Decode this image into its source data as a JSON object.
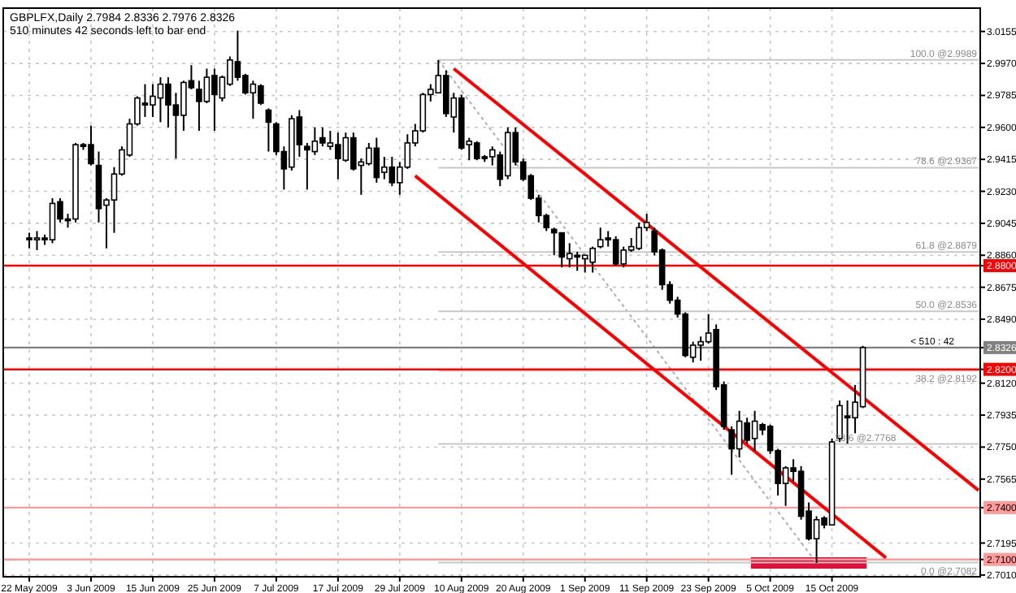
{
  "chart_data": {
    "type": "candlestick",
    "title": "GBPLFX,Daily  2.7984 2.8336 2.7976 2.8326",
    "subtitle": "510 minutes 42 seconds left to bar end",
    "categories": [
      "22 May 2009",
      null,
      null,
      null,
      null,
      null,
      null,
      null,
      "3 Jun 2009",
      null,
      null,
      null,
      null,
      null,
      null,
      null,
      "15 Jun 2009",
      null,
      null,
      null,
      null,
      null,
      null,
      null,
      "25 Jun 2009",
      null,
      null,
      null,
      null,
      null,
      null,
      null,
      "7 Jul 2009",
      null,
      null,
      null,
      null,
      null,
      null,
      null,
      "17 Jul 2009",
      null,
      null,
      null,
      null,
      null,
      null,
      null,
      "29 Jul 2009",
      null,
      null,
      null,
      null,
      null,
      null,
      null,
      "10 Aug 2009",
      null,
      null,
      null,
      null,
      null,
      null,
      null,
      "20 Aug 2009",
      null,
      null,
      null,
      null,
      null,
      null,
      null,
      "1 Sep 2009",
      null,
      null,
      null,
      null,
      null,
      null,
      null,
      "11 Sep 2009",
      null,
      null,
      null,
      null,
      null,
      null,
      null,
      "23 Sep 2009",
      null,
      null,
      null,
      null,
      null,
      null,
      null,
      "5 Oct 2009",
      null,
      null,
      null,
      null,
      null,
      null,
      null,
      "15 Oct 2009",
      null,
      null,
      null,
      null,
      null,
      null,
      null,
      null,
      null,
      null,
      null,
      null,
      null,
      null,
      null,
      null,
      null,
      null,
      null
    ],
    "ohlc": [
      [
        2.896,
        2.899,
        2.89,
        2.895
      ],
      [
        2.895,
        2.9,
        2.889,
        2.896
      ],
      [
        2.896,
        2.898,
        2.892,
        2.895
      ],
      [
        2.895,
        2.919,
        2.893,
        2.916
      ],
      [
        2.917,
        2.919,
        2.905,
        2.907
      ],
      [
        2.907,
        2.91,
        2.902,
        2.906
      ],
      [
        2.907,
        2.951,
        2.905,
        2.95
      ],
      [
        2.95,
        2.951,
        2.947,
        2.949
      ],
      [
        2.95,
        2.961,
        2.938,
        2.939
      ],
      [
        2.938,
        2.946,
        2.905,
        2.913
      ],
      [
        2.915,
        2.919,
        2.89,
        2.918
      ],
      [
        2.918,
        2.937,
        2.899,
        2.933
      ],
      [
        2.933,
        2.949,
        2.932,
        2.947
      ],
      [
        2.944,
        2.965,
        2.943,
        2.962
      ],
      [
        2.962,
        2.978,
        2.961,
        2.977
      ],
      [
        2.974,
        2.985,
        2.966,
        2.973
      ],
      [
        2.973,
        2.985,
        2.966,
        2.978
      ],
      [
        2.977,
        2.989,
        2.963,
        2.985
      ],
      [
        2.985,
        2.989,
        2.96,
        2.973
      ],
      [
        2.973,
        2.98,
        2.942,
        2.967
      ],
      [
        2.967,
        2.987,
        2.958,
        2.986
      ],
      [
        2.987,
        2.996,
        2.982,
        2.983
      ],
      [
        2.982,
        2.987,
        2.958,
        2.975
      ],
      [
        2.975,
        2.994,
        2.974,
        2.989
      ],
      [
        2.99,
        2.994,
        2.958,
        2.979
      ],
      [
        2.977,
        2.99,
        2.975,
        2.989
      ],
      [
        2.985,
        3.001,
        2.984,
        2.999
      ],
      [
        2.998,
        3.016,
        2.987,
        2.989
      ],
      [
        2.99,
        2.991,
        2.979,
        2.98
      ],
      [
        2.98,
        2.987,
        2.965,
        2.985
      ],
      [
        2.984,
        2.985,
        2.973,
        2.974
      ],
      [
        2.97,
        2.971,
        2.946,
        2.963
      ],
      [
        2.962,
        2.963,
        2.944,
        2.946
      ],
      [
        2.946,
        2.949,
        2.924,
        2.936
      ],
      [
        2.937,
        2.967,
        2.935,
        2.965
      ],
      [
        2.966,
        2.97,
        2.943,
        2.95
      ],
      [
        2.949,
        2.951,
        2.924,
        2.947
      ],
      [
        2.946,
        2.96,
        2.944,
        2.952
      ],
      [
        2.954,
        2.96,
        2.949,
        2.951
      ],
      [
        2.949,
        2.958,
        2.947,
        2.951
      ],
      [
        2.95,
        2.957,
        2.93,
        2.942
      ],
      [
        2.941,
        2.957,
        2.94,
        2.954
      ],
      [
        2.954,
        2.957,
        2.935,
        2.936
      ],
      [
        2.938,
        2.942,
        2.921,
        2.94
      ],
      [
        2.939,
        2.951,
        2.938,
        2.948
      ],
      [
        2.948,
        2.954,
        2.928,
        2.931
      ],
      [
        2.934,
        2.943,
        2.93,
        2.937
      ],
      [
        2.937,
        2.943,
        2.926,
        2.928
      ],
      [
        2.928,
        2.94,
        2.921,
        2.937
      ],
      [
        2.937,
        2.956,
        2.936,
        2.951
      ],
      [
        2.951,
        2.962,
        2.949,
        2.958
      ],
      [
        2.958,
        2.98,
        2.957,
        2.979
      ],
      [
        2.979,
        2.985,
        2.975,
        2.982
      ],
      [
        2.98,
        2.999,
        2.98,
        2.99
      ],
      [
        2.99,
        2.993,
        2.966,
        2.968
      ],
      [
        2.966,
        2.98,
        2.957,
        2.977
      ],
      [
        2.977,
        2.979,
        2.947,
        2.948
      ],
      [
        2.95,
        2.954,
        2.941,
        2.952
      ],
      [
        2.951,
        2.952,
        2.941,
        2.942
      ],
      [
        2.943,
        2.944,
        2.94,
        2.942
      ],
      [
        2.943,
        2.949,
        2.938,
        2.947
      ],
      [
        2.944,
        2.946,
        2.926,
        2.93
      ],
      [
        2.932,
        2.96,
        2.93,
        2.957
      ],
      [
        2.957,
        2.96,
        2.938,
        2.94
      ],
      [
        2.94,
        2.942,
        2.929,
        2.93
      ],
      [
        2.932,
        2.933,
        2.918,
        2.919
      ],
      [
        2.919,
        2.921,
        2.905,
        2.909
      ],
      [
        2.909,
        2.91,
        2.9,
        2.902
      ],
      [
        2.901,
        2.902,
        2.886,
        2.899
      ],
      [
        2.899,
        2.899,
        2.879,
        2.885
      ],
      [
        2.884,
        2.893,
        2.879,
        2.887
      ],
      [
        2.886,
        2.888,
        2.877,
        2.885
      ],
      [
        2.884,
        2.886,
        2.876,
        2.886
      ],
      [
        2.882,
        2.891,
        2.876,
        2.89
      ],
      [
        2.891,
        2.902,
        2.89,
        2.895
      ],
      [
        2.896,
        2.9,
        2.891,
        2.895
      ],
      [
        2.895,
        2.897,
        2.88,
        2.881
      ],
      [
        2.881,
        2.891,
        2.879,
        2.889
      ],
      [
        2.889,
        2.896,
        2.888,
        2.891
      ],
      [
        2.89,
        2.905,
        2.889,
        2.902
      ],
      [
        2.902,
        2.91,
        2.9,
        2.905
      ],
      [
        2.9,
        2.902,
        2.886,
        2.888
      ],
      [
        2.889,
        2.89,
        2.866,
        2.869
      ],
      [
        2.869,
        2.871,
        2.858,
        2.86
      ],
      [
        2.86,
        2.862,
        2.85,
        2.852
      ],
      [
        2.852,
        2.853,
        2.827,
        2.828
      ],
      [
        2.827,
        2.836,
        2.824,
        2.834
      ],
      [
        2.834,
        2.839,
        2.825,
        2.836
      ],
      [
        2.836,
        2.852,
        2.835,
        2.841
      ],
      [
        2.843,
        2.846,
        2.808,
        2.81
      ],
      [
        2.811,
        2.813,
        2.785,
        2.787
      ],
      [
        2.785,
        2.787,
        2.759,
        2.774
      ],
      [
        2.774,
        2.796,
        2.769,
        2.79
      ],
      [
        2.789,
        2.792,
        2.777,
        2.779
      ],
      [
        2.78,
        2.796,
        2.773,
        2.79
      ],
      [
        2.788,
        2.789,
        2.782,
        2.785
      ],
      [
        2.787,
        2.788,
        2.771,
        2.773
      ],
      [
        2.773,
        2.774,
        2.747,
        2.754
      ],
      [
        2.754,
        2.764,
        2.741,
        2.763
      ],
      [
        2.763,
        2.768,
        2.755,
        2.761
      ],
      [
        2.761,
        2.764,
        2.733,
        2.735
      ],
      [
        2.738,
        2.743,
        2.721,
        2.722
      ],
      [
        2.722,
        2.735,
        2.708,
        2.733
      ],
      [
        2.734,
        2.735,
        2.728,
        2.73
      ],
      [
        2.73,
        2.78,
        2.73,
        2.778
      ],
      [
        2.78,
        2.802,
        2.778,
        2.799
      ],
      [
        2.793,
        2.802,
        2.777,
        2.792
      ],
      [
        2.792,
        2.811,
        2.783,
        2.801
      ],
      [
        2.7984,
        2.8336,
        2.7976,
        2.8326
      ],
      null,
      null,
      null,
      null,
      null,
      null,
      null,
      null,
      null,
      null,
      null,
      null,
      null,
      null,
      null
    ],
    "series": [
      {
        "type": "line",
        "color": "#ff0000",
        "line_style": "solid",
        "values": [
          null,
          null,
          null,
          null,
          null,
          null,
          null,
          null,
          null,
          null,
          null,
          null,
          null,
          null,
          null,
          null,
          null,
          null,
          null,
          null,
          null,
          null,
          null,
          null,
          null,
          null,
          null,
          null,
          null,
          null,
          null,
          null,
          null,
          null,
          null,
          null,
          null,
          null,
          null,
          null,
          null,
          null,
          null,
          null,
          null,
          null,
          null,
          null,
          null,
          null,
          null,
          null,
          null,
          null,
          null,
          2.994,
          null,
          null,
          null,
          null,
          null,
          null,
          null,
          null,
          null,
          null,
          null,
          null,
          null,
          null,
          null,
          null,
          null,
          null,
          null,
          null,
          null,
          null,
          null,
          null,
          null,
          null,
          null,
          null,
          null,
          null,
          null,
          null,
          null,
          null,
          null,
          null,
          null,
          null,
          null,
          null,
          null,
          null,
          null,
          null,
          null,
          null,
          null,
          null,
          null,
          null,
          null,
          null,
          null,
          null,
          null,
          null,
          null,
          null,
          null,
          null,
          null,
          null,
          null,
          null,
          null,
          null,
          null,
          2.75
        ]
      },
      {
        "type": "line",
        "color": "#ff0000",
        "line_style": "solid",
        "values": [
          null,
          null,
          null,
          null,
          null,
          null,
          null,
          null,
          null,
          null,
          null,
          null,
          null,
          null,
          null,
          null,
          null,
          null,
          null,
          null,
          null,
          null,
          null,
          null,
          null,
          null,
          null,
          null,
          null,
          null,
          null,
          null,
          null,
          null,
          null,
          null,
          null,
          null,
          null,
          null,
          null,
          null,
          null,
          null,
          null,
          null,
          null,
          null,
          null,
          null,
          2.932,
          null,
          null,
          null,
          null,
          null,
          null,
          null,
          null,
          null,
          null,
          null,
          null,
          null,
          null,
          null,
          null,
          null,
          null,
          null,
          null,
          null,
          null,
          null,
          null,
          null,
          null,
          null,
          null,
          null,
          null,
          null,
          null,
          null,
          null,
          null,
          null,
          null,
          null,
          null,
          null,
          null,
          null,
          null,
          null,
          null,
          null,
          null,
          null,
          null,
          null,
          null,
          null,
          null,
          null,
          null,
          null,
          null,
          null,
          null,
          null,
          2.711,
          null,
          null,
          null,
          null,
          null,
          null,
          null,
          null,
          null,
          null,
          null,
          null
        ]
      },
      {
        "type": "line",
        "color": "#b0b0b0",
        "line_style": "dotted",
        "values": [
          null,
          null,
          null,
          null,
          null,
          null,
          null,
          null,
          null,
          null,
          null,
          null,
          null,
          null,
          null,
          null,
          null,
          null,
          null,
          null,
          null,
          null,
          null,
          null,
          null,
          null,
          null,
          null,
          null,
          null,
          null,
          null,
          null,
          null,
          null,
          null,
          null,
          null,
          null,
          null,
          null,
          null,
          null,
          null,
          null,
          null,
          null,
          null,
          null,
          null,
          null,
          null,
          null,
          2.999,
          null,
          null,
          null,
          null,
          null,
          null,
          null,
          null,
          null,
          null,
          null,
          null,
          null,
          null,
          null,
          null,
          null,
          null,
          null,
          null,
          null,
          null,
          null,
          null,
          null,
          null,
          null,
          null,
          null,
          null,
          null,
          null,
          null,
          null,
          null,
          null,
          null,
          null,
          null,
          null,
          null,
          null,
          null,
          null,
          null,
          null,
          null,
          null,
          2.708,
          null,
          null,
          null,
          null,
          null,
          null,
          null,
          null,
          null,
          null,
          null,
          null,
          null,
          null,
          null,
          null,
          null,
          null,
          null,
          null,
          null
        ]
      },
      {
        "type": "line",
        "color": "#c8c8c8",
        "line_style": "solid",
        "values": [
          null,
          null,
          null,
          null,
          null,
          null,
          null,
          null,
          null,
          null,
          null,
          null,
          null,
          null,
          null,
          null,
          null,
          null,
          null,
          null,
          null,
          null,
          null,
          null,
          null,
          null,
          null,
          null,
          null,
          null,
          null,
          null,
          null,
          null,
          null,
          null,
          null,
          null,
          null,
          null,
          null,
          null,
          null,
          null,
          null,
          null,
          null,
          null,
          null,
          null,
          null,
          null,
          null,
          2.999,
          null,
          null,
          null,
          null,
          null,
          null,
          null,
          null,
          null,
          null,
          null,
          null,
          null,
          null,
          null,
          null,
          null,
          null,
          null,
          null,
          null,
          null,
          null,
          null,
          null,
          null,
          null,
          null,
          null,
          null,
          null,
          null,
          null,
          null,
          null,
          null,
          null,
          null,
          null,
          null,
          null,
          null,
          null,
          null,
          null,
          null,
          null,
          null,
          null,
          null,
          null,
          null,
          null,
          null,
          null,
          null,
          null,
          null,
          null,
          null,
          null,
          null,
          null,
          null,
          null,
          null,
          null,
          null,
          null,
          2.999
        ]
      },
      {
        "type": "line",
        "color": "#c8c8c8",
        "line_style": "solid",
        "values": [
          null,
          null,
          null,
          null,
          null,
          null,
          null,
          null,
          null,
          null,
          null,
          null,
          null,
          null,
          null,
          null,
          null,
          null,
          null,
          null,
          null,
          null,
          null,
          null,
          null,
          null,
          null,
          null,
          null,
          null,
          null,
          null,
          null,
          null,
          null,
          null,
          null,
          null,
          null,
          null,
          null,
          null,
          null,
          null,
          null,
          null,
          null,
          null,
          null,
          null,
          null,
          null,
          null,
          2.9367,
          null,
          null,
          null,
          null,
          null,
          null,
          null,
          null,
          null,
          null,
          null,
          null,
          null,
          null,
          null,
          null,
          null,
          null,
          null,
          null,
          null,
          null,
          null,
          null,
          null,
          null,
          null,
          null,
          null,
          null,
          null,
          null,
          null,
          null,
          null,
          null,
          null,
          null,
          null,
          null,
          null,
          null,
          null,
          null,
          null,
          null,
          null,
          null,
          null,
          null,
          null,
          null,
          null,
          null,
          null,
          null,
          null,
          null,
          null,
          null,
          null,
          null,
          null,
          null,
          null,
          null,
          null,
          null,
          null,
          2.9367
        ]
      },
      {
        "type": "line",
        "color": "#c8c8c8",
        "line_style": "solid",
        "values": [
          null,
          null,
          null,
          null,
          null,
          null,
          null,
          null,
          null,
          null,
          null,
          null,
          null,
          null,
          null,
          null,
          null,
          null,
          null,
          null,
          null,
          null,
          null,
          null,
          null,
          null,
          null,
          null,
          null,
          null,
          null,
          null,
          null,
          null,
          null,
          null,
          null,
          null,
          null,
          null,
          null,
          null,
          null,
          null,
          null,
          null,
          null,
          null,
          null,
          null,
          null,
          null,
          null,
          2.8879,
          null,
          null,
          null,
          null,
          null,
          null,
          null,
          null,
          null,
          null,
          null,
          null,
          null,
          null,
          null,
          null,
          null,
          null,
          null,
          null,
          null,
          null,
          null,
          null,
          null,
          null,
          null,
          null,
          null,
          null,
          null,
          null,
          null,
          null,
          null,
          null,
          null,
          null,
          null,
          null,
          null,
          null,
          null,
          null,
          null,
          null,
          null,
          null,
          null,
          null,
          null,
          null,
          null,
          null,
          null,
          null,
          null,
          null,
          null,
          null,
          null,
          null,
          null,
          null,
          null,
          null,
          null,
          null,
          null,
          2.8879
        ]
      },
      {
        "type": "line",
        "color": "#c8c8c8",
        "line_style": "solid",
        "values": [
          null,
          null,
          null,
          null,
          null,
          null,
          null,
          null,
          null,
          null,
          null,
          null,
          null,
          null,
          null,
          null,
          null,
          null,
          null,
          null,
          null,
          null,
          null,
          null,
          null,
          null,
          null,
          null,
          null,
          null,
          null,
          null,
          null,
          null,
          null,
          null,
          null,
          null,
          null,
          null,
          null,
          null,
          null,
          null,
          null,
          null,
          null,
          null,
          null,
          null,
          null,
          null,
          null,
          2.8536,
          null,
          null,
          null,
          null,
          null,
          null,
          null,
          null,
          null,
          null,
          null,
          null,
          null,
          null,
          null,
          null,
          null,
          null,
          null,
          null,
          null,
          null,
          null,
          null,
          null,
          null,
          null,
          null,
          null,
          null,
          null,
          null,
          null,
          null,
          null,
          null,
          null,
          null,
          null,
          null,
          null,
          null,
          null,
          null,
          null,
          null,
          null,
          null,
          null,
          null,
          null,
          null,
          null,
          null,
          null,
          null,
          null,
          null,
          null,
          null,
          null,
          null,
          null,
          null,
          null,
          null,
          null,
          null,
          null,
          2.8536
        ]
      },
      {
        "type": "line",
        "color": "#c8c8c8",
        "line_style": "solid",
        "values": [
          null,
          null,
          null,
          null,
          null,
          null,
          null,
          null,
          null,
          null,
          null,
          null,
          null,
          null,
          null,
          null,
          null,
          null,
          null,
          null,
          null,
          null,
          null,
          null,
          null,
          null,
          null,
          null,
          null,
          null,
          null,
          null,
          null,
          null,
          null,
          null,
          null,
          null,
          null,
          null,
          null,
          null,
          null,
          null,
          null,
          null,
          null,
          null,
          null,
          null,
          null,
          null,
          null,
          2.8192,
          null,
          null,
          null,
          null,
          null,
          null,
          null,
          null,
          null,
          null,
          null,
          null,
          null,
          null,
          null,
          null,
          null,
          null,
          null,
          null,
          null,
          null,
          null,
          null,
          null,
          null,
          null,
          null,
          null,
          null,
          null,
          null,
          null,
          null,
          null,
          null,
          null,
          null,
          null,
          null,
          null,
          null,
          null,
          null,
          null,
          null,
          null,
          null,
          null,
          null,
          null,
          null,
          null,
          null,
          null,
          null,
          null,
          null,
          null,
          null,
          null,
          null,
          null,
          null,
          null,
          null,
          null,
          null,
          null,
          2.8192
        ]
      },
      {
        "type": "line",
        "color": "#c8c8c8",
        "line_style": "solid",
        "values": [
          null,
          null,
          null,
          null,
          null,
          null,
          null,
          null,
          null,
          null,
          null,
          null,
          null,
          null,
          null,
          null,
          null,
          null,
          null,
          null,
          null,
          null,
          null,
          null,
          null,
          null,
          null,
          null,
          null,
          null,
          null,
          null,
          null,
          null,
          null,
          null,
          null,
          null,
          null,
          null,
          null,
          null,
          null,
          null,
          null,
          null,
          null,
          null,
          null,
          null,
          null,
          null,
          null,
          2.7768,
          null,
          null,
          null,
          null,
          null,
          null,
          null,
          null,
          null,
          null,
          null,
          null,
          null,
          null,
          null,
          null,
          null,
          null,
          null,
          null,
          null,
          null,
          null,
          null,
          null,
          null,
          null,
          null,
          null,
          null,
          null,
          null,
          null,
          null,
          null,
          null,
          null,
          null,
          null,
          null,
          null,
          null,
          null,
          null,
          null,
          null,
          null,
          null,
          null,
          null,
          null,
          null,
          null,
          null,
          null,
          null,
          null,
          null,
          null,
          null,
          null,
          null,
          null,
          null,
          null,
          null,
          null,
          null,
          null,
          2.7768
        ]
      },
      {
        "type": "line",
        "color": "#c8c8c8",
        "line_style": "solid",
        "values": [
          null,
          null,
          null,
          null,
          null,
          null,
          null,
          null,
          null,
          null,
          null,
          null,
          null,
          null,
          null,
          null,
          null,
          null,
          null,
          null,
          null,
          null,
          null,
          null,
          null,
          null,
          null,
          null,
          null,
          null,
          null,
          null,
          null,
          null,
          null,
          null,
          null,
          null,
          null,
          null,
          null,
          null,
          null,
          null,
          null,
          null,
          null,
          null,
          null,
          null,
          null,
          null,
          null,
          2.7082,
          null,
          null,
          null,
          null,
          null,
          null,
          null,
          null,
          null,
          null,
          null,
          null,
          null,
          null,
          null,
          null,
          null,
          null,
          null,
          null,
          null,
          null,
          null,
          null,
          null,
          null,
          null,
          null,
          null,
          null,
          null,
          null,
          null,
          null,
          null,
          null,
          null,
          null,
          null,
          null,
          null,
          null,
          null,
          null,
          null,
          null,
          null,
          null,
          null,
          null,
          null,
          null,
          null,
          null,
          null,
          null,
          null,
          null,
          null,
          null,
          null,
          null,
          null,
          null,
          null,
          null,
          null,
          null,
          null,
          2.7082
        ]
      }
    ],
    "ylim": [
      2.7,
      3.029
    ],
    "yticks": [
      {
        "value": 3.0155,
        "label": "3.0155"
      },
      {
        "value": 2.997,
        "label": "2.9970"
      },
      {
        "value": 2.9785,
        "label": "2.9785"
      },
      {
        "value": 2.96,
        "label": "2.9600"
      },
      {
        "value": 2.9415,
        "label": "2.9415"
      },
      {
        "value": 2.923,
        "label": "2.9230"
      },
      {
        "value": 2.9045,
        "label": "2.9045"
      },
      {
        "value": 2.886,
        "label": "2.8860"
      },
      {
        "value": 2.8675,
        "label": "2.8675"
      },
      {
        "value": 2.849,
        "label": "2.8490"
      },
      {
        "value": 2.812,
        "label": "2.8120"
      },
      {
        "value": 2.7935,
        "label": "2.7935"
      },
      {
        "value": 2.775,
        "label": "2.7750"
      },
      {
        "value": 2.7565,
        "label": "2.7565"
      },
      {
        "value": 2.7195,
        "label": "2.7195"
      },
      {
        "value": 2.701,
        "label": "2.7010"
      },
      {
        "value": 2.88,
        "label": "2.8800"
      },
      {
        "value": 2.8326,
        "label": "2.8326"
      },
      {
        "value": 2.82,
        "label": "2.8200"
      },
      {
        "value": 2.74,
        "label": "2.7400"
      },
      {
        "value": 2.71,
        "label": "2.7100"
      }
    ],
    "ref_lines": [
      {
        "axis": "y",
        "value": 2.88,
        "color": "#ff0000"
      },
      {
        "axis": "y",
        "value": 2.82,
        "color": "#ff0000"
      },
      {
        "axis": "y",
        "value": 2.74,
        "color": "#ff9a9a"
      },
      {
        "axis": "y",
        "value": 2.71,
        "color": "#ff9a9a"
      },
      {
        "axis": "y",
        "value": 2.8326,
        "color": "#808080"
      }
    ],
    "annotations": [
      {
        "text": "< 510 : 42",
        "y": 2.8326
      },
      {
        "text": "100.0 @2.9989",
        "y": 2.9989
      },
      {
        "text": "78.6 @2.9367",
        "y": 2.9367
      },
      {
        "text": "61.8 @2.8879",
        "y": 2.8879
      },
      {
        "text": "50.0 @2.8536",
        "y": 2.8536
      },
      {
        "text": "38.2 @2.8192",
        "y": 2.8192
      },
      {
        "text": "23.6 @2.7768",
        "y": 2.7768
      },
      {
        "text": "0.0 @2.7082",
        "y": 2.7082
      }
    ],
    "grid": true
  }
}
